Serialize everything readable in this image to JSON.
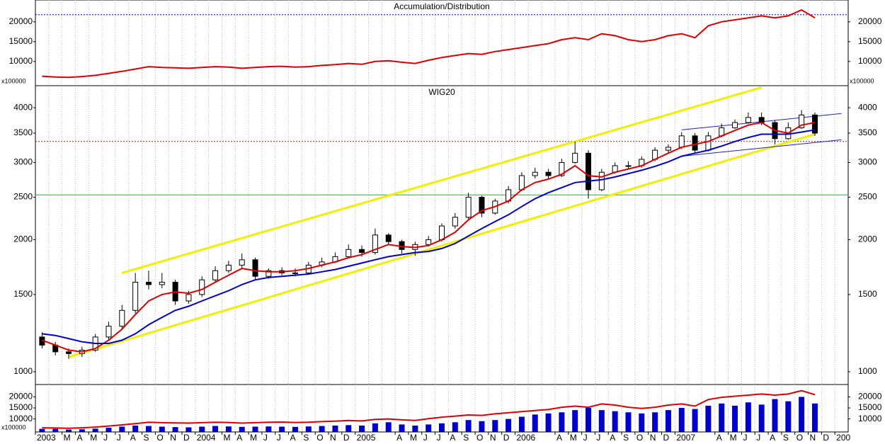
{
  "chart_data": [
    {
      "type": "line",
      "title": "Accumulation/Distribution",
      "y_unit_label": "x100000",
      "series": [
        {
          "color": "#dd0000",
          "values": [
            6300,
            6100,
            6000,
            6200,
            6500,
            7000,
            7500,
            8100,
            8700,
            8500,
            8400,
            8300,
            8500,
            8700,
            8600,
            8300,
            8500,
            8700,
            8800,
            8600,
            8700,
            9000,
            9200,
            9500,
            9300,
            10000,
            10200,
            9800,
            9500,
            10300,
            11000,
            11500,
            12000,
            11800,
            12500,
            13000,
            13500,
            14000,
            14500,
            15500,
            16000,
            15500,
            17000,
            16500,
            15500,
            15000,
            15500,
            16500,
            17000,
            16000,
            19000,
            20000,
            20500,
            21000,
            21500,
            21000,
            21500,
            23000,
            21000,
            null,
            null
          ]
        }
      ],
      "ylim": [
        3900,
        25500
      ],
      "yticks": [
        10000,
        15000,
        20000
      ],
      "grid": true,
      "reference_lines": [
        {
          "value": 21800,
          "color": "#0000cc",
          "style": "dotted"
        }
      ]
    },
    {
      "type": "candlestick",
      "title": "WIG20",
      "log_scale": true,
      "open": [
        1200,
        1150,
        1110,
        1100,
        1120,
        1200,
        1270,
        1380,
        1600,
        1580,
        1600,
        1450,
        1500,
        1620,
        1700,
        1750,
        1800,
        1650,
        1700,
        1680,
        1680,
        1750,
        1780,
        1830,
        1900,
        1870,
        2050,
        1980,
        1900,
        1950,
        2000,
        2150,
        2250,
        2500,
        2300,
        2450,
        2600,
        2800,
        2850,
        2800,
        3000,
        3150,
        2600,
        2850,
        2950,
        2950,
        3050,
        3200,
        3250,
        3450,
        3200,
        3450,
        3600,
        3700,
        3800,
        3700,
        3400,
        3600,
        3850,
        null,
        null
      ],
      "high": [
        1230,
        1170,
        1130,
        1140,
        1220,
        1300,
        1420,
        1680,
        1700,
        1680,
        1620,
        1530,
        1650,
        1740,
        1790,
        1860,
        1820,
        1720,
        1730,
        1720,
        1780,
        1820,
        1870,
        1950,
        1940,
        2120,
        2070,
        2000,
        1980,
        2040,
        2180,
        2300,
        2560,
        2520,
        2480,
        2650,
        2850,
        2920,
        2900,
        3060,
        3350,
        3200,
        2900,
        3000,
        3020,
        3100,
        3250,
        3300,
        3520,
        3500,
        3520,
        3680,
        3760,
        3900,
        3900,
        3750,
        3700,
        3950,
        3900,
        null,
        null
      ],
      "low": [
        1130,
        1090,
        1070,
        1080,
        1110,
        1180,
        1250,
        1360,
        1540,
        1550,
        1420,
        1430,
        1480,
        1600,
        1680,
        1720,
        1620,
        1630,
        1660,
        1650,
        1670,
        1730,
        1770,
        1820,
        1830,
        1850,
        1950,
        1860,
        1840,
        1930,
        1980,
        2120,
        2230,
        2250,
        2280,
        2420,
        2580,
        2760,
        2750,
        2780,
        2980,
        2480,
        2580,
        2830,
        2900,
        2920,
        3020,
        3150,
        3220,
        3150,
        3180,
        3420,
        3580,
        3680,
        3650,
        3300,
        3380,
        3580,
        3450,
        null,
        null
      ],
      "close": [
        1150,
        1110,
        1100,
        1120,
        1200,
        1270,
        1380,
        1600,
        1580,
        1600,
        1450,
        1500,
        1620,
        1700,
        1750,
        1800,
        1650,
        1700,
        1680,
        1680,
        1750,
        1780,
        1830,
        1900,
        1870,
        2050,
        1980,
        1900,
        1950,
        2000,
        2150,
        2250,
        2500,
        2300,
        2450,
        2600,
        2800,
        2850,
        2800,
        3000,
        3150,
        2600,
        2850,
        2950,
        2950,
        3050,
        3200,
        3250,
        3450,
        3200,
        3450,
        3600,
        3700,
        3800,
        3700,
        3400,
        3600,
        3850,
        3500,
        null,
        null
      ],
      "series": [
        {
          "color": "#dd0000",
          "values": [
            1180,
            1150,
            1120,
            1110,
            1130,
            1180,
            1250,
            1350,
            1450,
            1500,
            1520,
            1510,
            1540,
            1600,
            1660,
            1720,
            1700,
            1690,
            1690,
            1700,
            1720,
            1750,
            1780,
            1820,
            1850,
            1900,
            1950,
            1930,
            1920,
            1940,
            2000,
            2080,
            2220,
            2330,
            2380,
            2450,
            2600,
            2700,
            2750,
            2820,
            2950,
            2800,
            2780,
            2850,
            2900,
            2950,
            3050,
            3150,
            3250,
            3300,
            3350,
            3450,
            3550,
            3650,
            3700,
            3550,
            3500,
            3650,
            3700,
            null,
            null
          ]
        },
        {
          "color": "#0000cc",
          "values": [
            1220,
            1210,
            1190,
            1170,
            1160,
            1160,
            1180,
            1220,
            1280,
            1330,
            1380,
            1410,
            1450,
            1490,
            1530,
            1580,
            1620,
            1640,
            1650,
            1660,
            1670,
            1690,
            1710,
            1740,
            1770,
            1800,
            1830,
            1850,
            1870,
            1880,
            1910,
            1960,
            2040,
            2120,
            2200,
            2280,
            2380,
            2480,
            2560,
            2630,
            2700,
            2720,
            2740,
            2780,
            2830,
            2880,
            2940,
            3010,
            3100,
            3150,
            3200,
            3270,
            3350,
            3420,
            3480,
            3480,
            3480,
            3520,
            3560,
            null,
            null
          ]
        }
      ],
      "ylim": [
        935,
        4490
      ],
      "yticks": [
        1000,
        1500,
        2000,
        2500,
        3000,
        3500,
        4000
      ],
      "grid": true,
      "reference_lines": [
        {
          "value": 2530,
          "color": "#00cc00",
          "style": "solid"
        },
        {
          "value": 3350,
          "color": "#cc0000",
          "style": "dotted"
        }
      ],
      "trend_lines": [
        {
          "color": "#f0f000",
          "from": [
            6,
            1680
          ],
          "to": [
            54,
            4450
          ]
        },
        {
          "color": "#f0f000",
          "from": [
            2,
            1080
          ],
          "to": [
            58,
            3480
          ]
        },
        {
          "color": "#2020c0",
          "from": [
            48,
            3560
          ],
          "to": [
            60,
            3880
          ]
        },
        {
          "color": "#2020c0",
          "from": [
            48,
            3100
          ],
          "to": [
            60,
            3380
          ]
        }
      ]
    },
    {
      "type": "bar",
      "y_unit_label": "x100000",
      "categories": [
        "2003",
        null,
        "M",
        "A",
        "M",
        "J",
        "J",
        "A",
        "S",
        "O",
        "N",
        "D",
        "2004",
        null,
        "M",
        "A",
        "M",
        "J",
        "J",
        "A",
        "S",
        "O",
        "N",
        "D",
        "2005",
        null,
        null,
        "A",
        "M",
        "J",
        "J",
        "A",
        "S",
        "O",
        "N",
        "D",
        "2006",
        null,
        null,
        "A",
        "M",
        "J",
        "J",
        "A",
        "S",
        "O",
        "N",
        "D",
        "2007",
        null,
        null,
        "A",
        "M",
        "J",
        "J",
        "A",
        "S",
        "O",
        "N",
        "D",
        "200"
      ],
      "values": [
        5500,
        5500,
        5200,
        5300,
        5600,
        6000,
        6500,
        7000,
        6800,
        6500,
        6300,
        6200,
        6500,
        6800,
        6600,
        6400,
        6500,
        6600,
        6500,
        6400,
        6600,
        6800,
        7000,
        7200,
        7000,
        8000,
        8500,
        7500,
        7000,
        7500,
        8000,
        8500,
        9500,
        9000,
        9500,
        10000,
        11000,
        12000,
        12500,
        13000,
        14000,
        15000,
        14000,
        13500,
        13000,
        12500,
        13000,
        14000,
        15000,
        14500,
        16000,
        17000,
        16000,
        17500,
        16500,
        19000,
        18000,
        20000,
        17000,
        null,
        null
      ],
      "color": "#0000cc",
      "series": [
        {
          "color": "#dd0000",
          "values": [
            6000,
            5900,
            5800,
            6000,
            6300,
            6800,
            7300,
            7900,
            8500,
            8300,
            8200,
            8100,
            8300,
            8500,
            8400,
            8100,
            8300,
            8500,
            8600,
            8400,
            8500,
            8800,
            9000,
            9300,
            9100,
            9800,
            10000,
            9600,
            9300,
            10100,
            10800,
            11300,
            11800,
            11600,
            12300,
            12800,
            13300,
            13800,
            14300,
            15300,
            15800,
            15300,
            16800,
            16300,
            15300,
            14800,
            15300,
            16300,
            16800,
            15800,
            18800,
            19800,
            20300,
            20800,
            21300,
            20800,
            21300,
            22800,
            21000,
            null,
            null
          ]
        }
      ],
      "ylim": [
        4100,
        25600
      ],
      "yticks": [
        10000,
        15000,
        20000
      ],
      "grid": true
    }
  ]
}
